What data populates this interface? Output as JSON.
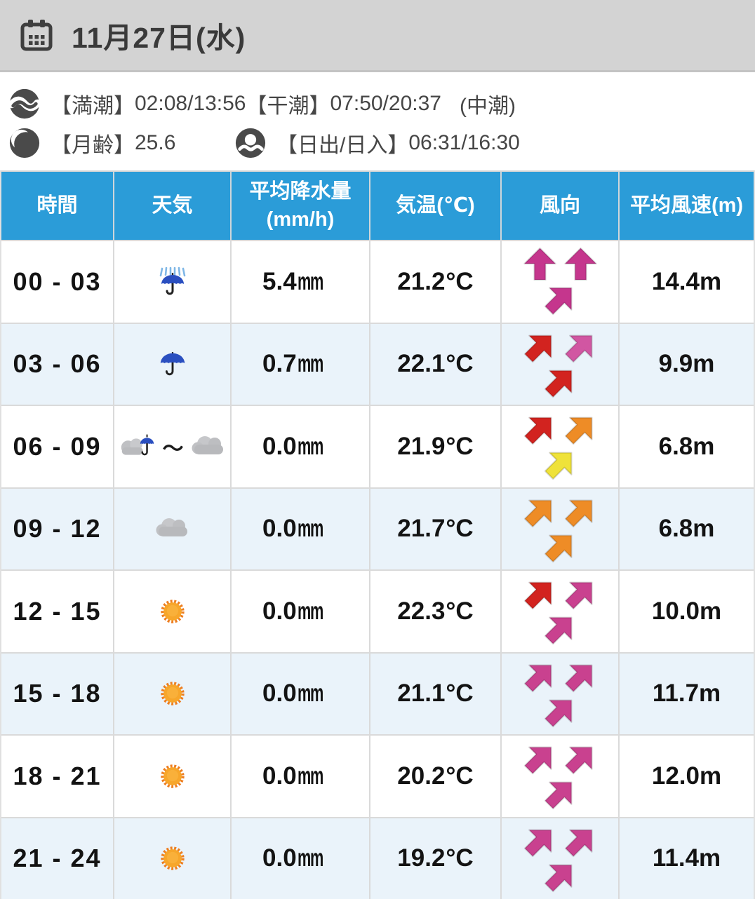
{
  "banner": {
    "calendar_icon": "calendar-icon",
    "date_label": "11月27日(水)"
  },
  "info": {
    "tide": {
      "icon": "wave-icon",
      "high_label": "【満潮】",
      "high_value": "02:08/13:56",
      "low_label": "【干潮】",
      "low_value": "07:50/20:37",
      "tide_type": "(中潮)"
    },
    "moon": {
      "icon": "moon-icon",
      "label": "【月齢】",
      "value": "25.6"
    },
    "sun": {
      "icon": "sunrise-icon",
      "label": "【日出/日入】",
      "value": "06:31/16:30"
    }
  },
  "table": {
    "columns": [
      {
        "label": "時間"
      },
      {
        "label": "天気"
      },
      {
        "label": "平均降水量",
        "label2": "(mm/h)"
      },
      {
        "label": "気温(℃)"
      },
      {
        "label": "風向"
      },
      {
        "label": "平均風速(m)"
      }
    ],
    "tilde": "～",
    "rows": [
      {
        "time": "00 - 03",
        "weather": [
          "rain-umbrella-icon"
        ],
        "precip": "5.4",
        "precip_unit": "㎜",
        "temp": "21.2",
        "temp_unit": "℃",
        "wind": [
          {
            "dir": "N",
            "color": "#c5368d"
          },
          {
            "dir": "N",
            "color": "#c5368d"
          },
          {
            "dir": "NE",
            "color": "#c5368d"
          }
        ],
        "speed": "14.4m"
      },
      {
        "time": "03 - 06",
        "weather": [
          "umbrella-icon"
        ],
        "precip": "0.7",
        "precip_unit": "㎜",
        "temp": "22.1",
        "temp_unit": "℃",
        "wind": [
          {
            "dir": "NE",
            "color": "#d2231f"
          },
          {
            "dir": "NE",
            "color": "#d156a2"
          },
          {
            "dir": "NE",
            "color": "#d2231f"
          }
        ],
        "speed": "9.9m"
      },
      {
        "time": "06 - 09",
        "weather": [
          "cloud-umbrella-icon",
          "range-tilde",
          "cloud-icon"
        ],
        "precip": "0.0",
        "precip_unit": "㎜",
        "temp": "21.9",
        "temp_unit": "℃",
        "wind": [
          {
            "dir": "NE",
            "color": "#d2231f"
          },
          {
            "dir": "NE",
            "color": "#ee8c26"
          },
          {
            "dir": "NE",
            "color": "#efe23a"
          }
        ],
        "speed": "6.8m"
      },
      {
        "time": "09 - 12",
        "weather": [
          "cloud-icon"
        ],
        "precip": "0.0",
        "precip_unit": "㎜",
        "temp": "21.7",
        "temp_unit": "℃",
        "wind": [
          {
            "dir": "NE",
            "color": "#ee8c26"
          },
          {
            "dir": "NE",
            "color": "#ee8c26"
          },
          {
            "dir": "NE",
            "color": "#ee8c26"
          }
        ],
        "speed": "6.8m"
      },
      {
        "time": "12 - 15",
        "weather": [
          "sun-icon"
        ],
        "precip": "0.0",
        "precip_unit": "㎜",
        "temp": "22.3",
        "temp_unit": "℃",
        "wind": [
          {
            "dir": "NE",
            "color": "#d2231f"
          },
          {
            "dir": "NE",
            "color": "#c9418f"
          },
          {
            "dir": "NE",
            "color": "#c9418f"
          }
        ],
        "speed": "10.0m"
      },
      {
        "time": "15 - 18",
        "weather": [
          "sun-icon"
        ],
        "precip": "0.0",
        "precip_unit": "㎜",
        "temp": "21.1",
        "temp_unit": "℃",
        "wind": [
          {
            "dir": "NE",
            "color": "#c9418f"
          },
          {
            "dir": "NE",
            "color": "#c9418f"
          },
          {
            "dir": "NE",
            "color": "#c9418f"
          }
        ],
        "speed": "11.7m"
      },
      {
        "time": "18 - 21",
        "weather": [
          "sun-icon"
        ],
        "precip": "0.0",
        "precip_unit": "㎜",
        "temp": "20.2",
        "temp_unit": "℃",
        "wind": [
          {
            "dir": "NE",
            "color": "#c9418f"
          },
          {
            "dir": "NE",
            "color": "#c9418f"
          },
          {
            "dir": "NE",
            "color": "#c9418f"
          }
        ],
        "speed": "12.0m"
      },
      {
        "time": "21 - 24",
        "weather": [
          "sun-icon"
        ],
        "precip": "0.0",
        "precip_unit": "㎜",
        "temp": "19.2",
        "temp_unit": "℃",
        "wind": [
          {
            "dir": "NE",
            "color": "#c9418f"
          },
          {
            "dir": "NE",
            "color": "#c9418f"
          },
          {
            "dir": "NE",
            "color": "#c9418f"
          }
        ],
        "speed": "11.4m"
      }
    ]
  },
  "colors": {
    "header_blue": "#2b9cd8",
    "row_alt": "#eaf3fa",
    "banner_gray": "#d3d3d3",
    "arrow_pink": "#c9418f",
    "arrow_red": "#d2231f",
    "arrow_orange": "#ee8c26",
    "arrow_yellow": "#efe23a"
  }
}
